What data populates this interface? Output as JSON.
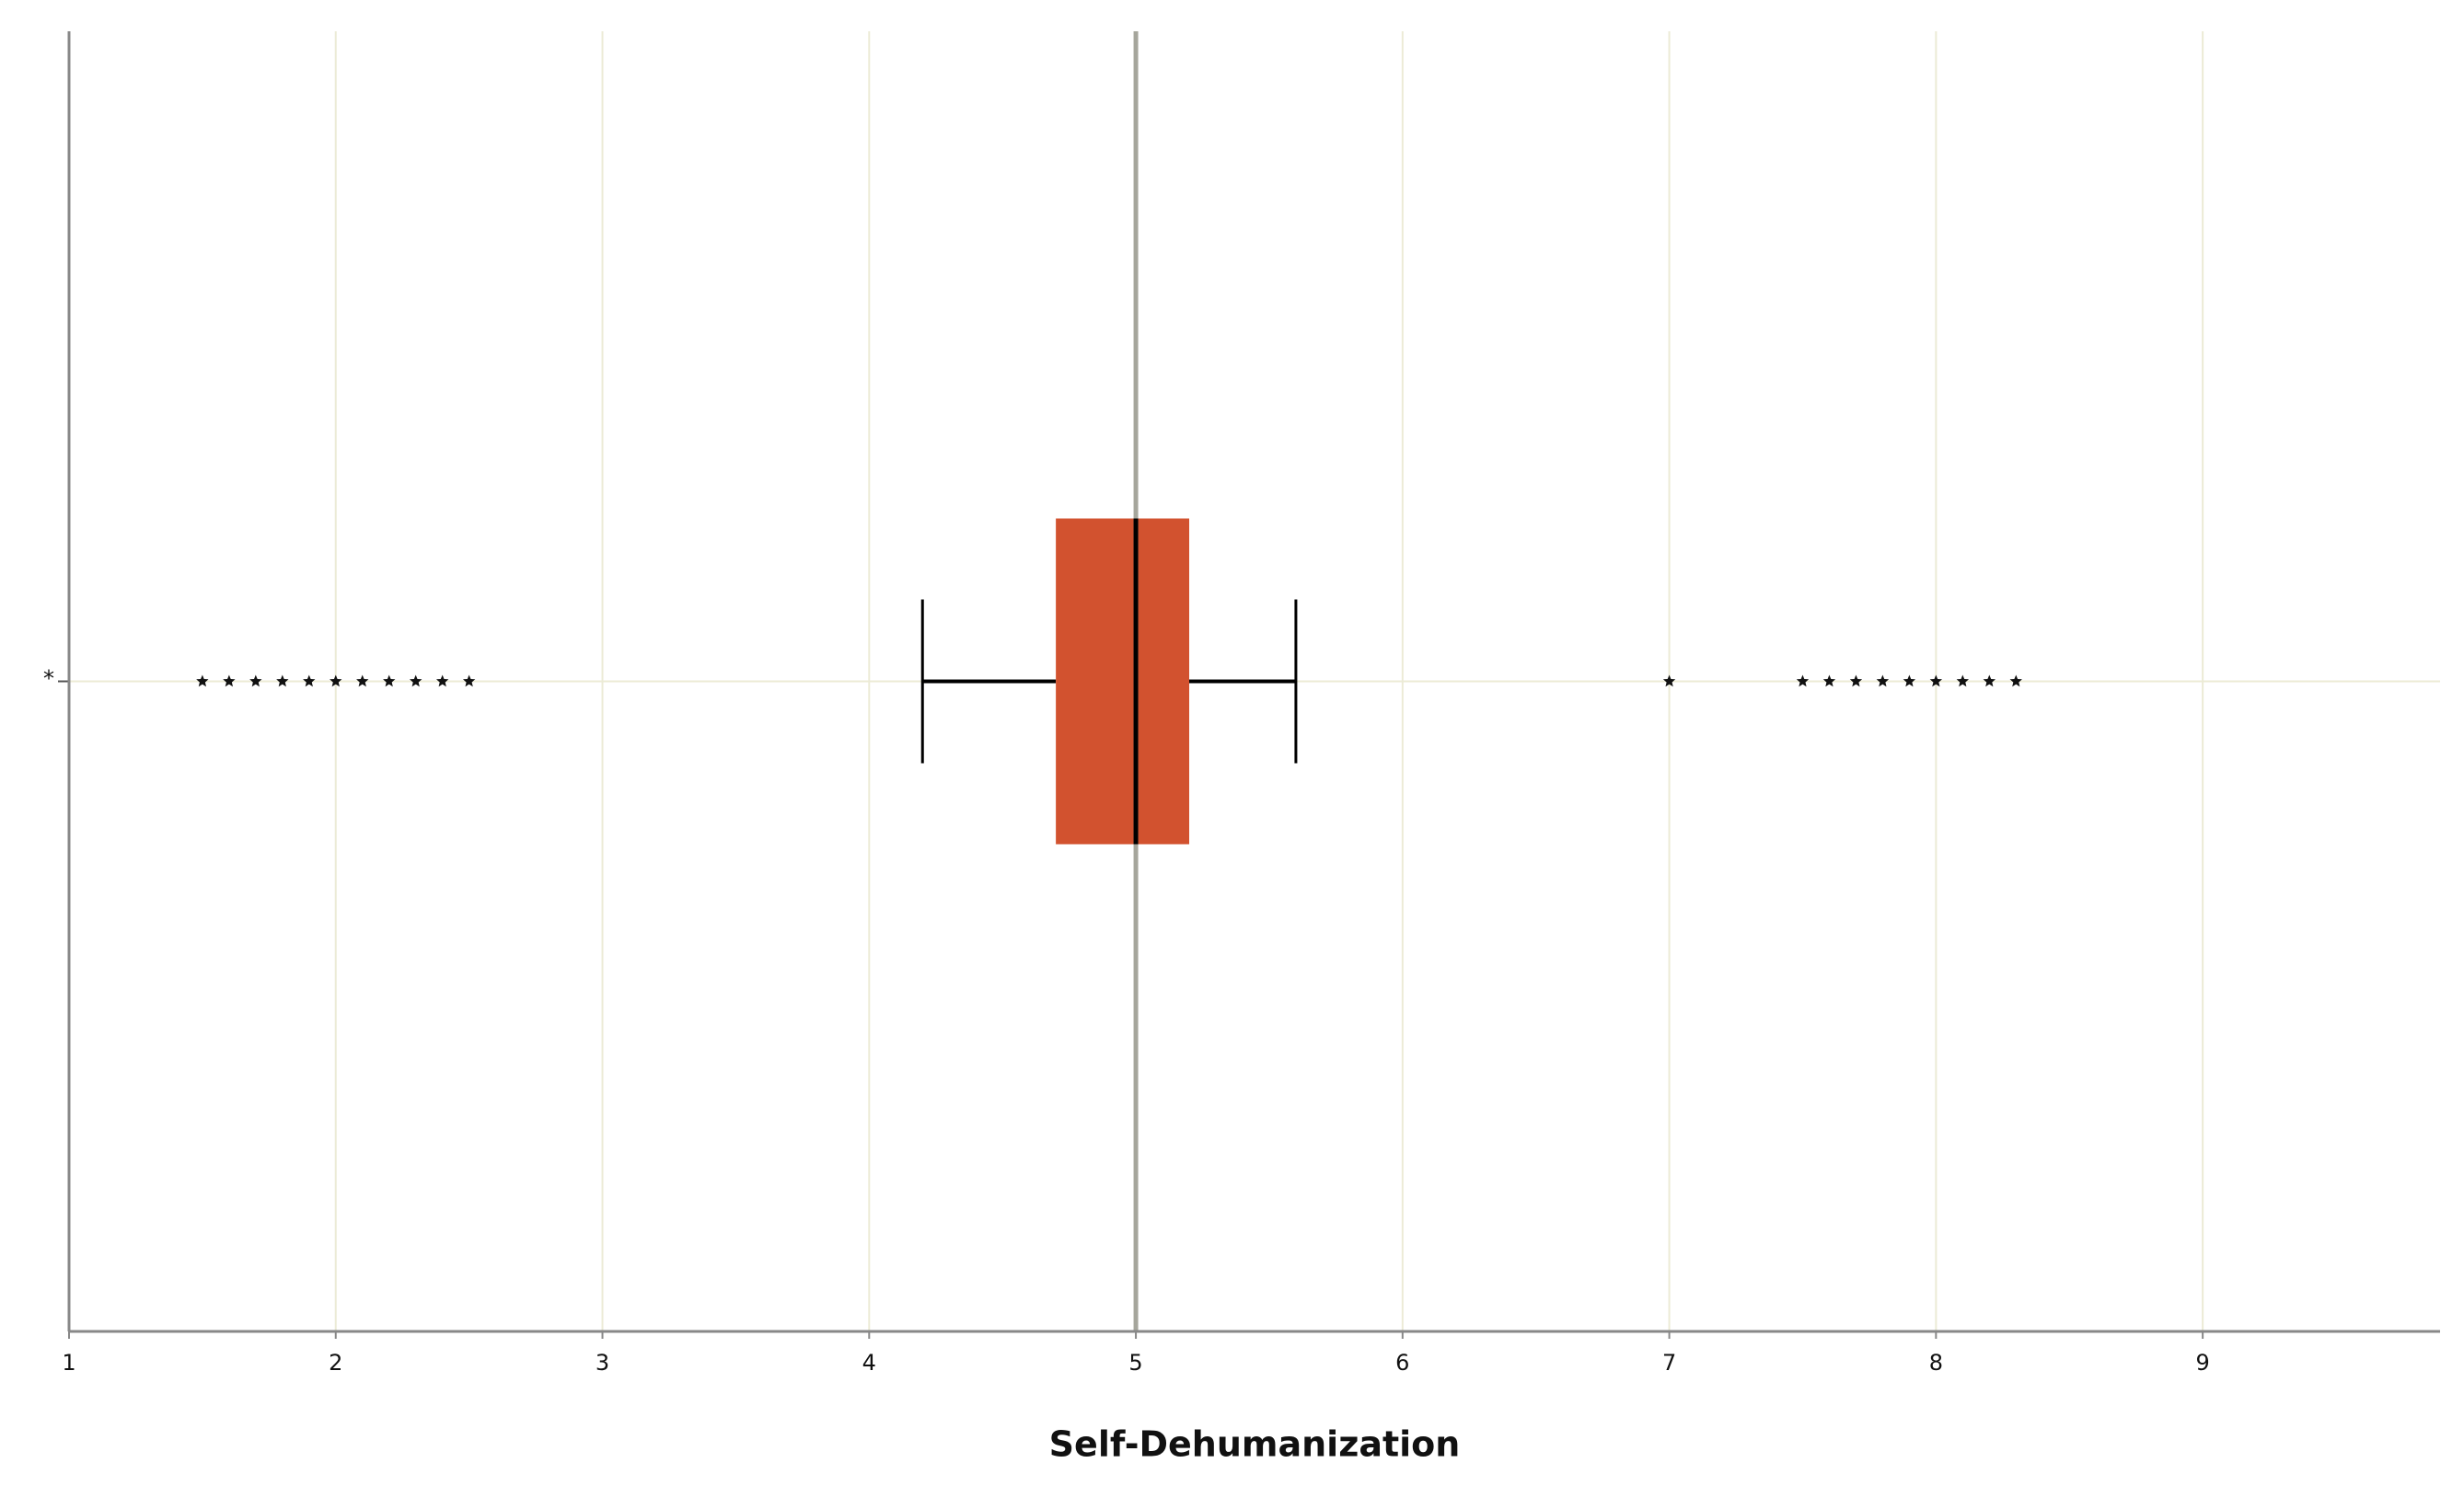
{
  "chart_data": {
    "type": "boxplot",
    "orientation": "horizontal",
    "x_label": "Self-Dehumanization",
    "categories": [
      "*"
    ],
    "boxes": [
      {
        "whislo": 4.2,
        "q1": 4.7,
        "median": 5.0,
        "q3": 5.2,
        "whishi": 5.6,
        "fliers": [
          1.5,
          1.6,
          1.7,
          1.8,
          1.9,
          2.0,
          2.1,
          2.2,
          2.3,
          2.4,
          2.5,
          7.0,
          7.5,
          7.6,
          7.7,
          7.8,
          7.9,
          8.0,
          8.1,
          8.2,
          8.3
        ]
      }
    ],
    "color": "#d2522f",
    "reference_line": 5,
    "xlim": [
      1,
      9.89
    ],
    "xticks": [
      1,
      2,
      3,
      4,
      5,
      6,
      7,
      8,
      9
    ],
    "grid": true
  }
}
